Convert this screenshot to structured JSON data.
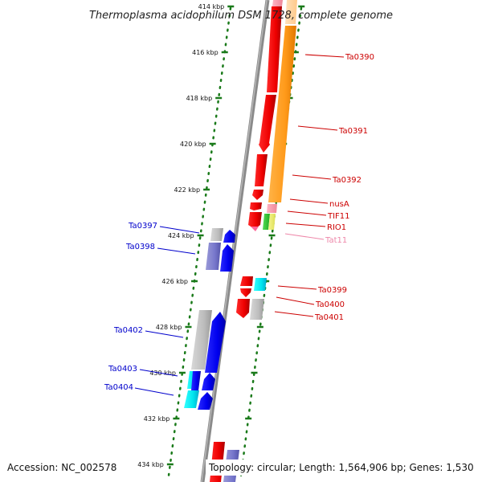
{
  "title": "Thermoplasma acidophilum DSM 1728, complete genome",
  "footer": {
    "accession": "Accession: NC_002578",
    "topology": "Topology: circular; Length: 1,564,906 bp; Genes: 1,530"
  },
  "colors": {
    "forward_label": "#cc0000",
    "reverse_label": "#0000cc",
    "trna_label": "#ee88aa",
    "ruler": "#1a7a1a",
    "backbone": "#888888"
  },
  "ruler_ticks": [
    {
      "label": "414 kbp",
      "kbp": 414
    },
    {
      "label": "416 kbp",
      "kbp": 416
    },
    {
      "label": "418 kbp",
      "kbp": 418
    },
    {
      "label": "420 kbp",
      "kbp": 420
    },
    {
      "label": "422 kbp",
      "kbp": 422
    },
    {
      "label": "424 kbp",
      "kbp": 424
    },
    {
      "label": "426 kbp",
      "kbp": 426
    },
    {
      "label": "428 kbp",
      "kbp": 428
    },
    {
      "label": "430 kbp",
      "kbp": 430
    },
    {
      "label": "432 kbp",
      "kbp": 432
    },
    {
      "label": "434 kbp",
      "kbp": 434
    }
  ],
  "forward_labels": [
    "Ta0390",
    "Ta0391",
    "Ta0392",
    "nusA",
    "TIF11",
    "RIO1",
    "Tat11",
    "Ta0399",
    "Ta0400",
    "Ta0401"
  ],
  "reverse_labels": [
    "Ta0397",
    "Ta0398",
    "Ta0402",
    "Ta0403",
    "Ta0404"
  ]
}
